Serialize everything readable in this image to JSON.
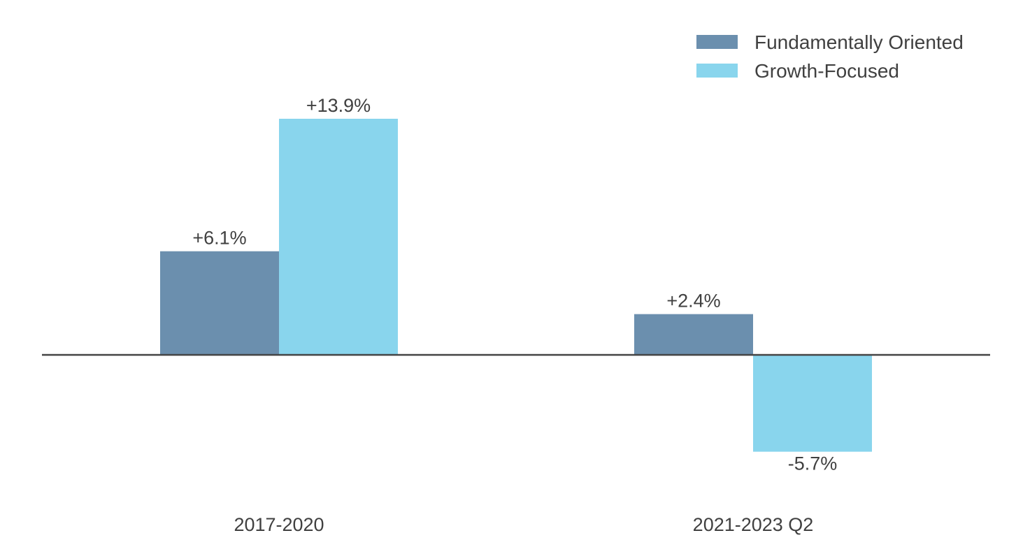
{
  "chart_data": {
    "type": "bar",
    "categories": [
      "2017-2020",
      "2021-2023 Q2"
    ],
    "series": [
      {
        "name": "Fundamentally Oriented",
        "values": [
          6.1,
          2.4
        ],
        "labels": [
          "+6.1%",
          "+2.4%"
        ],
        "color": "#6b8fae"
      },
      {
        "name": "Growth-Focused",
        "values": [
          13.9,
          -5.7
        ],
        "labels": [
          "+13.9%",
          "-5.7%"
        ],
        "color": "#89d5ed"
      }
    ],
    "unit": "%",
    "ylim": [
      -9,
      15
    ],
    "grid": false,
    "legend_position": "top-right",
    "zero_line_color": "#444444"
  }
}
